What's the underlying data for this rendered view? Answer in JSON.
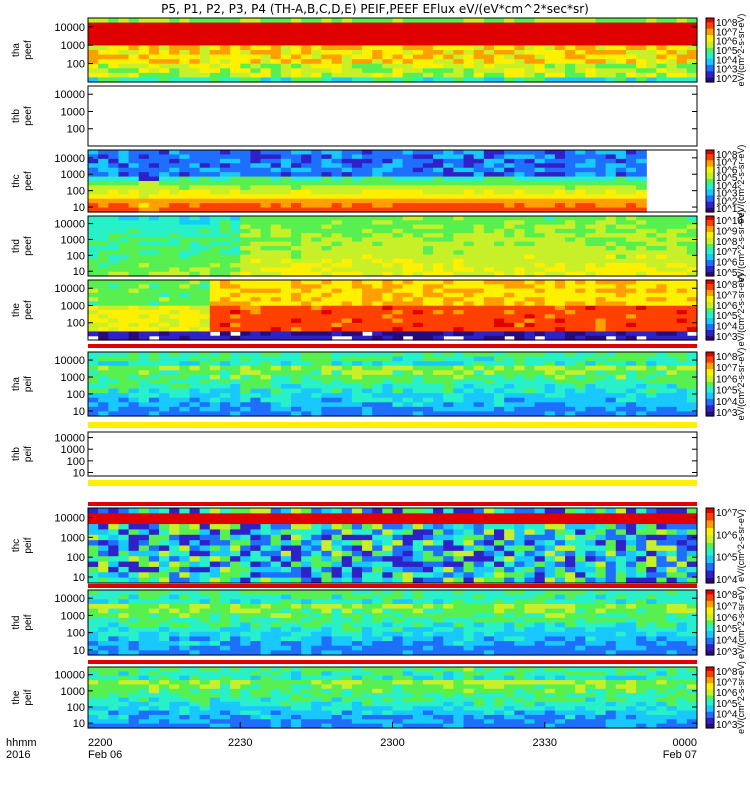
{
  "title": "P5, P1, P2, P3, P4 (TH-A,B,C,D,E) PEIF,PEEF EFlux eV/(eV*cm^2*sec*sr)",
  "chart_data": {
    "type": "heatmap",
    "x_axis": {
      "row1_label": "hhmm",
      "row2_label": "2016",
      "ticks": [
        {
          "hhmm": "2200",
          "date": "Feb 06"
        },
        {
          "hhmm": "2230",
          "date": ""
        },
        {
          "hhmm": "2300",
          "date": ""
        },
        {
          "hhmm": "2330",
          "date": ""
        },
        {
          "hhmm": "0000",
          "date": "Feb 07"
        }
      ]
    },
    "panels": [
      {
        "probe": "tha",
        "product": "peef",
        "label_top": "tha",
        "label_bottom": "peef",
        "yticks": [
          "10000",
          "1000",
          "100"
        ],
        "yscale": "log",
        "ylim": [
          10,
          30000
        ],
        "colorbar_ticks": [
          "10^8",
          "10^7",
          "10^6",
          "10^5",
          "10^4",
          "10^3",
          "10^2"
        ],
        "colorbar_label": "eV/(cm^2-s-sr-eV)",
        "state": "data",
        "pattern": "hot"
      },
      {
        "probe": "thb",
        "product": "peef",
        "label_top": "thb",
        "label_bottom": "peef",
        "yticks": [
          "10000",
          "1000",
          "100"
        ],
        "yscale": "log",
        "ylim": [
          10,
          30000
        ],
        "colorbar_ticks": [],
        "colorbar_label": "",
        "state": "empty",
        "pattern": "none"
      },
      {
        "probe": "thc",
        "product": "peef",
        "label_top": "thc",
        "label_bottom": "peef",
        "yticks": [
          "10000",
          "1000",
          "100",
          "10"
        ],
        "yscale": "log",
        "ylim": [
          5,
          30000
        ],
        "colorbar_ticks": [
          "10^8",
          "10^7",
          "10^6",
          "10^5",
          "10^4",
          "10^3",
          "10^2",
          "10^1"
        ],
        "colorbar_label": "eV/(cm^2-s-sr-eV)",
        "state": "data",
        "pattern": "layered"
      },
      {
        "probe": "thd",
        "product": "peef",
        "label_top": "thd",
        "label_bottom": "peef",
        "yticks": [
          "10000",
          "1000",
          "100",
          "10"
        ],
        "yscale": "log",
        "ylim": [
          5,
          30000
        ],
        "colorbar_ticks": [
          "10^10",
          "10^9",
          "10^8",
          "10^7",
          "10^6",
          "10^5"
        ],
        "colorbar_label": "eV/(cm^2-s-sr-eV)",
        "state": "data",
        "pattern": "cool"
      },
      {
        "probe": "the",
        "product": "peef",
        "label_top": "the",
        "label_bottom": "peef",
        "yticks": [
          "10000",
          "1000",
          "100"
        ],
        "yscale": "log",
        "ylim": [
          10,
          30000
        ],
        "colorbar_ticks": [
          "10^8",
          "10^7",
          "10^6",
          "10^5",
          "10^4",
          "10^3"
        ],
        "colorbar_label": "eV/(cm^2-s-sr-eV)",
        "state": "data",
        "pattern": "warm"
      },
      {
        "probe": "tha",
        "product": "peif",
        "label_top": "tha",
        "label_bottom": "peif",
        "yticks": [
          "10000",
          "1000",
          "100",
          "10"
        ],
        "yscale": "log",
        "ylim": [
          5,
          30000
        ],
        "colorbar_ticks": [
          "10^8",
          "10^7",
          "10^6",
          "10^5",
          "10^4",
          "10^3"
        ],
        "colorbar_label": "eV/(cm^2-s-sr-eV)",
        "state": "data",
        "pattern": "ion"
      },
      {
        "probe": "thb",
        "product": "peif",
        "label_top": "thb",
        "label_bottom": "peif",
        "yticks": [
          "10000",
          "1000",
          "100",
          "10"
        ],
        "yscale": "log",
        "ylim": [
          5,
          30000
        ],
        "colorbar_ticks": [],
        "colorbar_label": "",
        "state": "empty",
        "pattern": "none"
      },
      {
        "probe": "thc",
        "product": "peif",
        "label_top": "thc",
        "label_bottom": "peif",
        "yticks": [
          "10000",
          "1000",
          "100",
          "10"
        ],
        "yscale": "log",
        "ylim": [
          5,
          30000
        ],
        "colorbar_ticks": [
          "10^7",
          "10^6",
          "10^5",
          "10^4"
        ],
        "colorbar_label": "eV/(cm^2-s-sr-eV)",
        "state": "data",
        "pattern": "blocky"
      },
      {
        "probe": "thd",
        "product": "peif",
        "label_top": "thd",
        "label_bottom": "peif",
        "yticks": [
          "10000",
          "1000",
          "100",
          "10"
        ],
        "yscale": "log",
        "ylim": [
          5,
          30000
        ],
        "colorbar_ticks": [
          "10^8",
          "10^7",
          "10^6",
          "10^5",
          "10^4",
          "10^3"
        ],
        "colorbar_label": "eV/(cm^2-s-sr-eV)",
        "state": "data",
        "pattern": "ion"
      },
      {
        "probe": "the",
        "product": "peif",
        "label_top": "the",
        "label_bottom": "peif",
        "yticks": [
          "10000",
          "1000",
          "100",
          "10"
        ],
        "yscale": "log",
        "ylim": [
          5,
          30000
        ],
        "colorbar_ticks": [
          "10^8",
          "10^7",
          "10^6",
          "10^5",
          "10^4",
          "10^3"
        ],
        "colorbar_label": "eV/(cm^2-s-sr-eV)",
        "state": "data",
        "pattern": "ion"
      }
    ]
  },
  "colors": {
    "colormap": [
      "#2a0a7a",
      "#3020c8",
      "#1f6fff",
      "#18c8ff",
      "#28f0c8",
      "#58f050",
      "#c8f028",
      "#fff000",
      "#ffa000",
      "#ff4000",
      "#e00000"
    ]
  }
}
